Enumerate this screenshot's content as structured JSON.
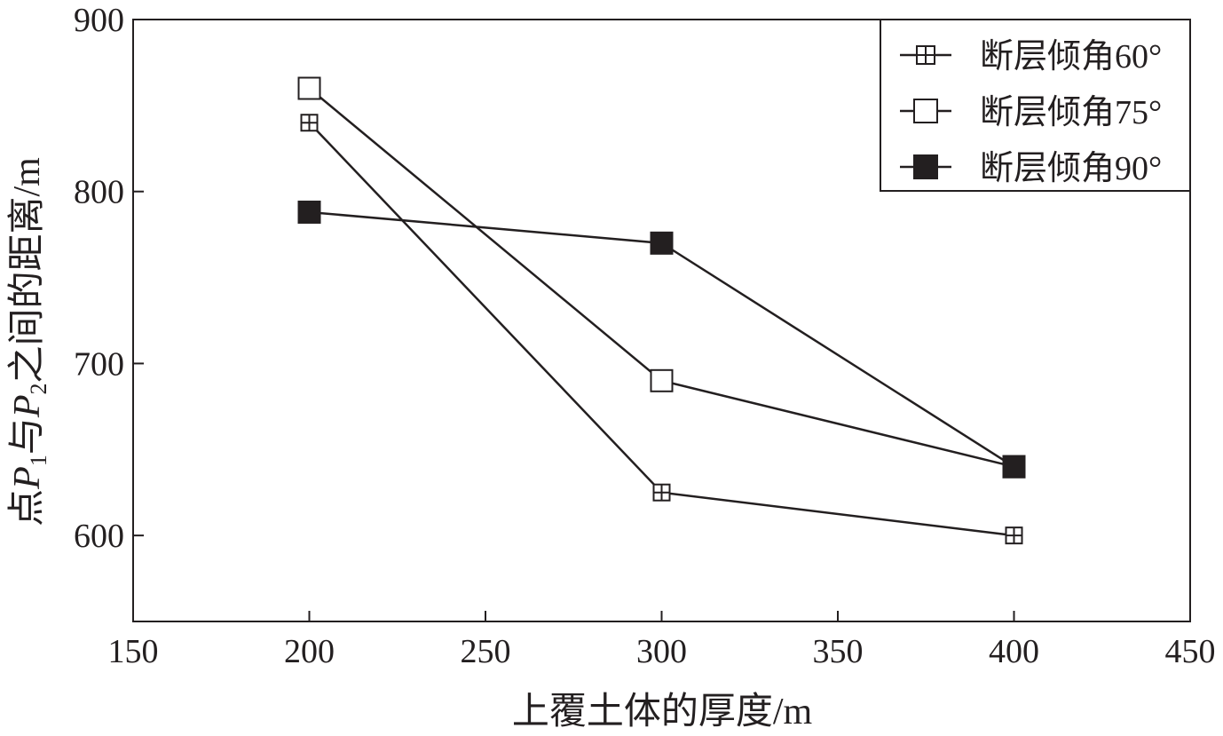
{
  "chart_data": {
    "type": "line",
    "title": "",
    "xlabel": "上覆土体的厚度/m",
    "ylabel": {
      "pre1": "点",
      "p1": "P",
      "sub1": "1",
      "mid": "与",
      "p2": "P",
      "sub2": "2",
      "post": "之间的距离/m"
    },
    "xlim": [
      150,
      450
    ],
    "ylim": [
      550,
      900
    ],
    "xticks": [
      150,
      200,
      250,
      300,
      350,
      400,
      450
    ],
    "yticks": [
      600,
      700,
      800,
      900
    ],
    "grid": false,
    "legend_position": "top-right",
    "series": [
      {
        "name": "断层倾角60°",
        "marker": "crossed-square",
        "x": [
          200,
          300,
          400
        ],
        "y": [
          840,
          625,
          600
        ]
      },
      {
        "name": "断层倾角75°",
        "marker": "open-square",
        "x": [
          200,
          300,
          400
        ],
        "y": [
          860,
          690,
          640
        ]
      },
      {
        "name": "断层倾角90°",
        "marker": "filled-square",
        "x": [
          200,
          300,
          400
        ],
        "y": [
          788,
          770,
          640
        ]
      }
    ],
    "colors": {
      "line": "#231f20",
      "background": "#ffffff"
    }
  }
}
